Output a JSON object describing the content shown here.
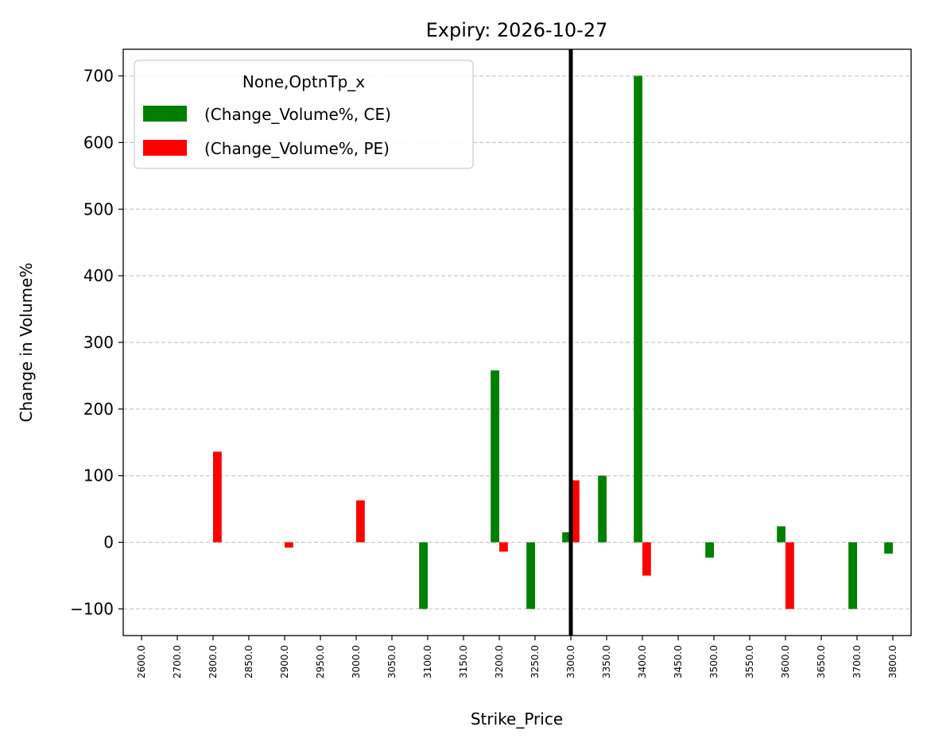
{
  "chart_data": {
    "type": "bar",
    "title": "Expiry: 2026-10-27",
    "xlabel": "Strike_Price",
    "ylabel": "Change in Volume%",
    "categories": [
      "2600.0",
      "2700.0",
      "2800.0",
      "2850.0",
      "2900.0",
      "2950.0",
      "3000.0",
      "3050.0",
      "3100.0",
      "3150.0",
      "3200.0",
      "3250.0",
      "3300.0",
      "3350.0",
      "3400.0",
      "3450.0",
      "3500.0",
      "3550.0",
      "3600.0",
      "3650.0",
      "3700.0",
      "3800.0"
    ],
    "series": [
      {
        "name": "(Change_Volume%, CE)",
        "color": "#008000",
        "values": [
          0,
          0,
          0,
          0,
          0,
          0,
          0,
          0,
          -100,
          0,
          258,
          -100,
          15,
          100,
          700,
          0,
          -23,
          0,
          24,
          0,
          -100,
          -17
        ]
      },
      {
        "name": "(Change_Volume%, PE)",
        "color": "#ff0000",
        "values": [
          0,
          0,
          136,
          0,
          -8,
          0,
          63,
          0,
          0,
          0,
          -14,
          0,
          93,
          0,
          -50,
          0,
          0,
          0,
          -100,
          0,
          0,
          0
        ]
      }
    ],
    "ylim": [
      -140,
      740
    ],
    "yticks": [
      -100,
      0,
      100,
      200,
      300,
      400,
      500,
      600,
      700
    ],
    "ytick_labels": [
      "−100",
      "0",
      "100",
      "200",
      "300",
      "400",
      "500",
      "600",
      "700"
    ],
    "grid": "y-dashed",
    "reference_line": {
      "category": "3300.0",
      "color": "#000000"
    },
    "legend": {
      "title": "None,OptnTp_x",
      "placement": "top-left"
    }
  }
}
